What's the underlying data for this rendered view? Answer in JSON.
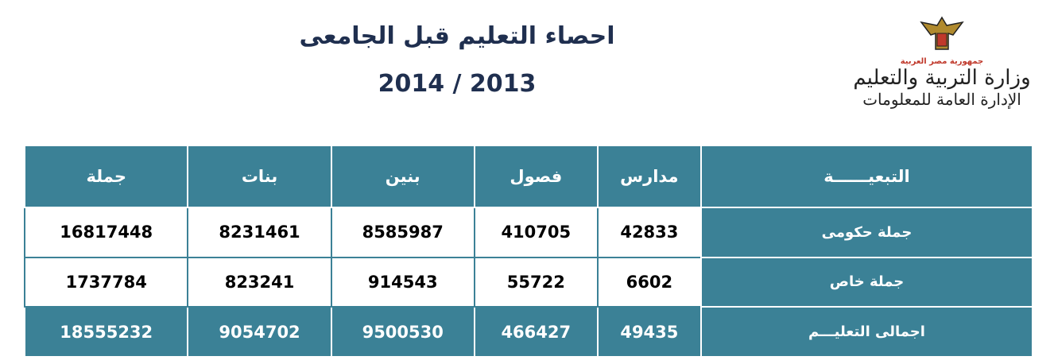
{
  "header": {
    "title": "احصاء التعليم قبل الجامعى",
    "years": "2014 / 2013"
  },
  "logo": {
    "country": "جمهورية مصر العربية",
    "ministry": "وزارة التربية والتعليم",
    "department": "الإدارة العامة للمعلومات"
  },
  "table": {
    "columns": [
      "التبعيــــــة",
      "مدارس",
      "فصول",
      "بنين",
      "بنات",
      "جملة"
    ],
    "rows": [
      [
        "جملة حكومى",
        42833,
        410705,
        8585987,
        8231461,
        16817448
      ],
      [
        "جملة خاص",
        6602,
        55722,
        914543,
        823241,
        1737784
      ],
      [
        "اجمالى التعليـــم",
        49435,
        466427,
        9500530,
        9054702,
        18555232
      ]
    ]
  }
}
